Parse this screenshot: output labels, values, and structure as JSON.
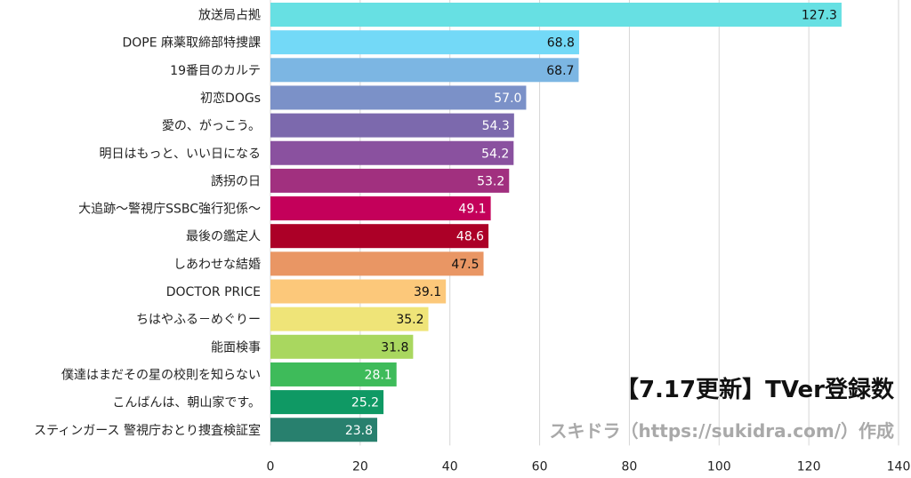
{
  "chart_data": {
    "type": "bar",
    "orientation": "horizontal",
    "title": "【7.17更新】TVer登録数",
    "subtitle": "スキドラ（https://sukidra.com/）作成",
    "xlim": [
      0,
      140
    ],
    "xticks": [
      0,
      20,
      40,
      60,
      80,
      100,
      120,
      140
    ],
    "grid": true,
    "categories": [
      "放送局占拠",
      "DOPE 麻薬取締部特捜課",
      "19番目のカルテ",
      "初恋DOGs",
      "愛の、がっこう。",
      "明日はもっと、いい日になる",
      "誘拐の日",
      "大追跡～警視庁SSBC強行犯係～",
      "最後の鑑定人",
      "しあわせな結婚",
      "DOCTOR PRICE",
      "ちはやふる－めぐりー",
      "能面検事",
      "僕達はまだその星の校則を知らない",
      "こんばんは、朝山家です。",
      "スティンガース 警視庁おとり捜査検証室"
    ],
    "values": [
      127.3,
      68.8,
      68.7,
      57.0,
      54.3,
      54.2,
      53.2,
      49.1,
      48.6,
      47.5,
      39.1,
      35.2,
      31.8,
      28.1,
      25.2,
      23.8
    ],
    "value_labels": [
      "127.3",
      "68.8",
      "68.7",
      "57.0",
      "54.3",
      "54.2",
      "53.2",
      "49.1",
      "48.6",
      "47.5",
      "39.1",
      "35.2",
      "31.8",
      "28.1",
      "25.2",
      "23.8"
    ],
    "colors": [
      "#67e0e3",
      "#73d9f7",
      "#7cb6e3",
      "#7b91c8",
      "#7c69ad",
      "#8a519f",
      "#a1307f",
      "#c4005a",
      "#ac0027",
      "#e99664",
      "#fcc87a",
      "#efe478",
      "#a9d75f",
      "#3ebb5a",
      "#0f9964",
      "#28806e"
    ],
    "value_label_colors": [
      "#111111",
      "#111111",
      "#111111",
      "#ffffff",
      "#ffffff",
      "#ffffff",
      "#ffffff",
      "#ffffff",
      "#ffffff",
      "#111111",
      "#111111",
      "#111111",
      "#111111",
      "#ffffff",
      "#ffffff",
      "#ffffff"
    ]
  }
}
